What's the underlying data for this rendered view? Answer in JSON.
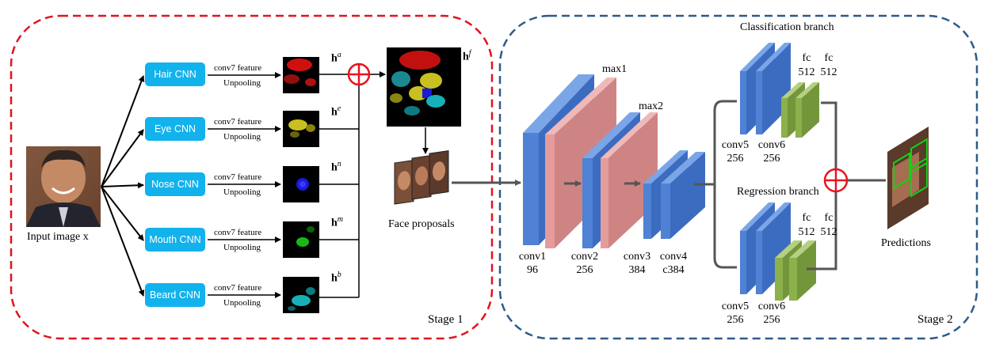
{
  "stage1": {
    "label": "Stage 1",
    "input_label": "Input image x",
    "face_proposals_label": "Face proposals",
    "branches": [
      {
        "name": "Hair CNN",
        "feature_label": "conv7 feature",
        "unpool_label": "Unpooling",
        "symbol": "h",
        "superscript": "a",
        "map_color": "#e01010"
      },
      {
        "name": "Eye CNN",
        "feature_label": "conv7 feature",
        "unpool_label": "Unpooling",
        "symbol": "h",
        "superscript": "e",
        "map_color": "#d8d020"
      },
      {
        "name": "Nose CNN",
        "feature_label": "conv7 feature",
        "unpool_label": "Unpooling",
        "symbol": "h",
        "superscript": "n",
        "map_color": "#1a1ae0"
      },
      {
        "name": "Mouth CNN",
        "feature_label": "conv7 feature",
        "unpool_label": "Unpooling",
        "symbol": "h",
        "superscript": "m",
        "map_color": "#18c018"
      },
      {
        "name": "Beard CNN",
        "feature_label": "conv7 feature",
        "unpool_label": "Unpooling",
        "symbol": "h",
        "superscript": "b",
        "map_color": "#20c8d0"
      }
    ],
    "fused_symbol": "h",
    "fused_superscript": "f"
  },
  "stage2": {
    "label": "Stage 2",
    "layers": [
      {
        "name": "conv1",
        "size": "96"
      },
      {
        "name": "conv2",
        "size": "256"
      },
      {
        "name": "conv3",
        "size": "384"
      },
      {
        "name": "conv4",
        "size": "c384"
      }
    ],
    "pools": [
      "max1",
      "max2"
    ],
    "classification": {
      "title": "Classification branch",
      "conv5": {
        "name": "conv5",
        "size": "256"
      },
      "conv6": {
        "name": "conv6",
        "size": "256"
      },
      "fc1": {
        "name": "fc",
        "size": "512"
      },
      "fc2": {
        "name": "fc",
        "size": "512"
      }
    },
    "regression": {
      "title": "Regression branch",
      "conv5": {
        "name": "conv5",
        "size": "256"
      },
      "conv6": {
        "name": "conv6",
        "size": "256"
      },
      "fc1": {
        "name": "fc",
        "size": "512"
      },
      "fc2": {
        "name": "fc",
        "size": "512"
      }
    },
    "predictions_label": "Predictions"
  },
  "colors": {
    "stage1_border": "#e0141e",
    "stage2_border": "#2e5a8a",
    "cnn_box": "#12b2ec",
    "conv_blue": "#4f81d4",
    "pool_pink": "#e59c9c",
    "fc_green": "#8cb04a",
    "plus_red": "#e8141e"
  }
}
